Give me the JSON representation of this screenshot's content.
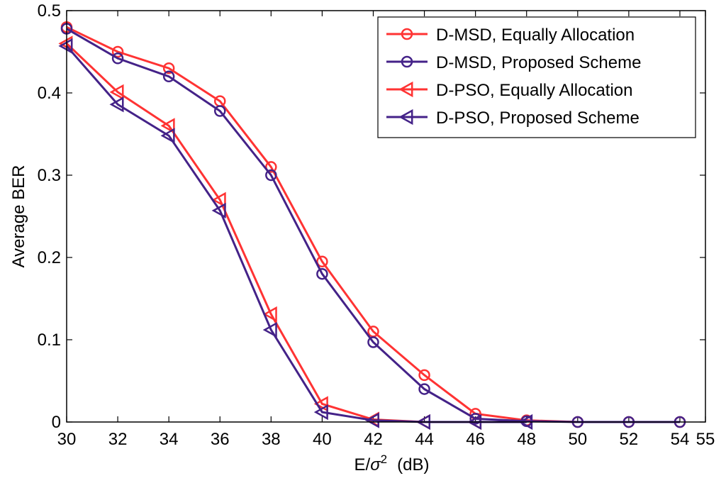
{
  "chart_data": {
    "type": "line",
    "title": "",
    "xlabel": "E/σ²  (dB)",
    "xlabel_parts": {
      "prefix": "E/",
      "symbol": "σ",
      "superscript": "2",
      "suffix": "(dB)"
    },
    "ylabel": "Average BER",
    "xlim": [
      30,
      55
    ],
    "ylim": [
      0,
      0.5
    ],
    "xticks": [
      30,
      32,
      34,
      36,
      38,
      40,
      42,
      44,
      46,
      48,
      50,
      52,
      54,
      55
    ],
    "xtick_labels": [
      "30",
      "32",
      "34",
      "36",
      "38",
      "40",
      "42",
      "44",
      "46",
      "48",
      "50",
      "52",
      "54",
      "55"
    ],
    "yticks": [
      0,
      0.1,
      0.2,
      0.3,
      0.4,
      0.5
    ],
    "ytick_labels": [
      "0",
      "0.1",
      "0.2",
      "0.3",
      "0.4",
      "0.5"
    ],
    "grid": false,
    "legend_position": "top-right",
    "series": [
      {
        "name": "D-MSD, Equally Allocation",
        "color": "#ff3333",
        "marker": "circle",
        "x": [
          30,
          32,
          34,
          36,
          38,
          40,
          42,
          44,
          46,
          48,
          50,
          52,
          54
        ],
        "y": [
          0.48,
          0.45,
          0.43,
          0.39,
          0.31,
          0.195,
          0.11,
          0.057,
          0.01,
          0.002,
          0,
          0,
          0
        ]
      },
      {
        "name": "D-MSD, Proposed Scheme",
        "color": "#442288",
        "marker": "circle",
        "x": [
          30,
          32,
          34,
          36,
          38,
          40,
          42,
          44,
          46,
          48,
          50,
          52,
          54
        ],
        "y": [
          0.478,
          0.442,
          0.42,
          0.378,
          0.3,
          0.18,
          0.097,
          0.04,
          0.004,
          0.001,
          0,
          0,
          0
        ]
      },
      {
        "name": "D-PSO,  Equally Allocation",
        "color": "#ff3333",
        "marker": "triangle-left",
        "x": [
          30,
          32,
          34,
          36,
          38,
          40,
          42,
          44,
          46
        ],
        "y": [
          0.46,
          0.401,
          0.36,
          0.27,
          0.131,
          0.022,
          0.003,
          0,
          0
        ]
      },
      {
        "name": "D-PSO,  Proposed Scheme",
        "color": "#442288",
        "marker": "triangle-left",
        "x": [
          30,
          32,
          34,
          36,
          38,
          40,
          42,
          44,
          46,
          48
        ],
        "y": [
          0.457,
          0.386,
          0.348,
          0.257,
          0.112,
          0.012,
          0.002,
          0,
          0,
          0
        ]
      }
    ]
  }
}
